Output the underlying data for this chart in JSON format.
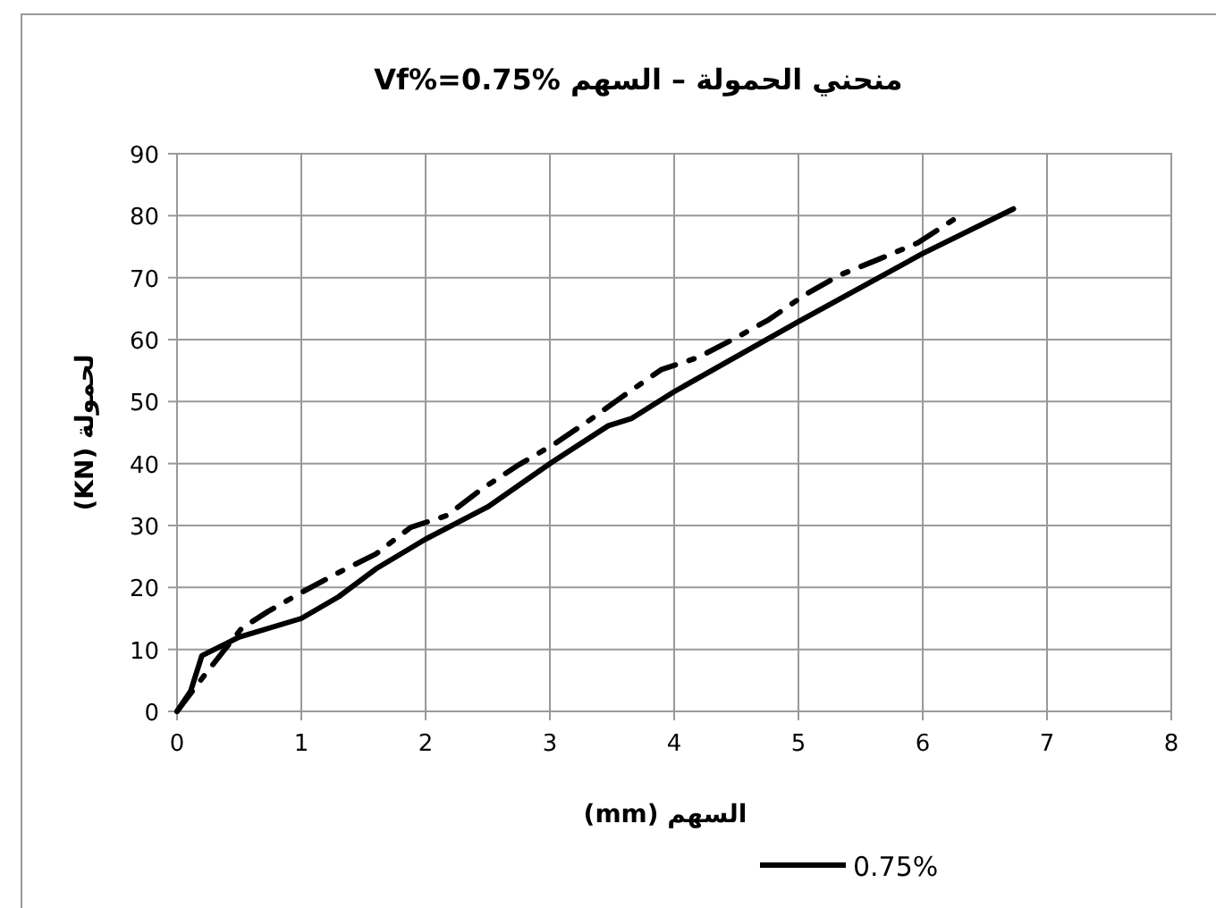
{
  "chart_data": {
    "type": "line",
    "title": "منحني الحمولة – السهم  Vf%=0.75%",
    "xlabel": "السهم (mm)",
    "ylabel": "لحمولة (KN)",
    "xlim": [
      0,
      8
    ],
    "xticks": [
      0,
      1,
      2,
      3,
      4,
      5,
      6,
      7,
      8
    ],
    "ylim": [
      0,
      90
    ],
    "yticks": [
      0,
      10,
      20,
      30,
      40,
      50,
      60,
      70,
      80,
      90
    ],
    "grid": true,
    "legend": "bottom",
    "series": [
      {
        "name": "0.75%",
        "color": "#000000",
        "line_style": "solid",
        "x": [
          0,
          0.11,
          0.2,
          0.5,
          1,
          1.3,
          1.6,
          2,
          2.5,
          3,
          3.47,
          3.66,
          4,
          5,
          6,
          6.73
        ],
        "values": [
          0,
          3.3,
          9,
          12,
          15,
          18.5,
          23,
          27.8,
          33,
          40,
          46.1,
          47.3,
          51.6,
          62.9,
          73.9,
          81.1
        ]
      },
      {
        "color": "#000000",
        "line_style": "dashdot",
        "x": [
          0,
          0.25,
          0.52,
          0.73,
          1.02,
          1.31,
          1.6,
          1.88,
          2.17,
          2.46,
          2.75,
          3.04,
          3.32,
          3.59,
          3.9,
          4.19,
          4.47,
          4.76,
          5.05,
          5.33,
          5.65,
          5.96,
          6.25,
          6.3
        ],
        "values": [
          0,
          6.6,
          13.4,
          16.1,
          19.4,
          22.5,
          25.4,
          29.7,
          31.6,
          36,
          39.8,
          43.2,
          47,
          50.9,
          55.2,
          57.1,
          60,
          63.2,
          67.2,
          70.4,
          73,
          75.6,
          79.4,
          80.2
        ]
      }
    ]
  }
}
